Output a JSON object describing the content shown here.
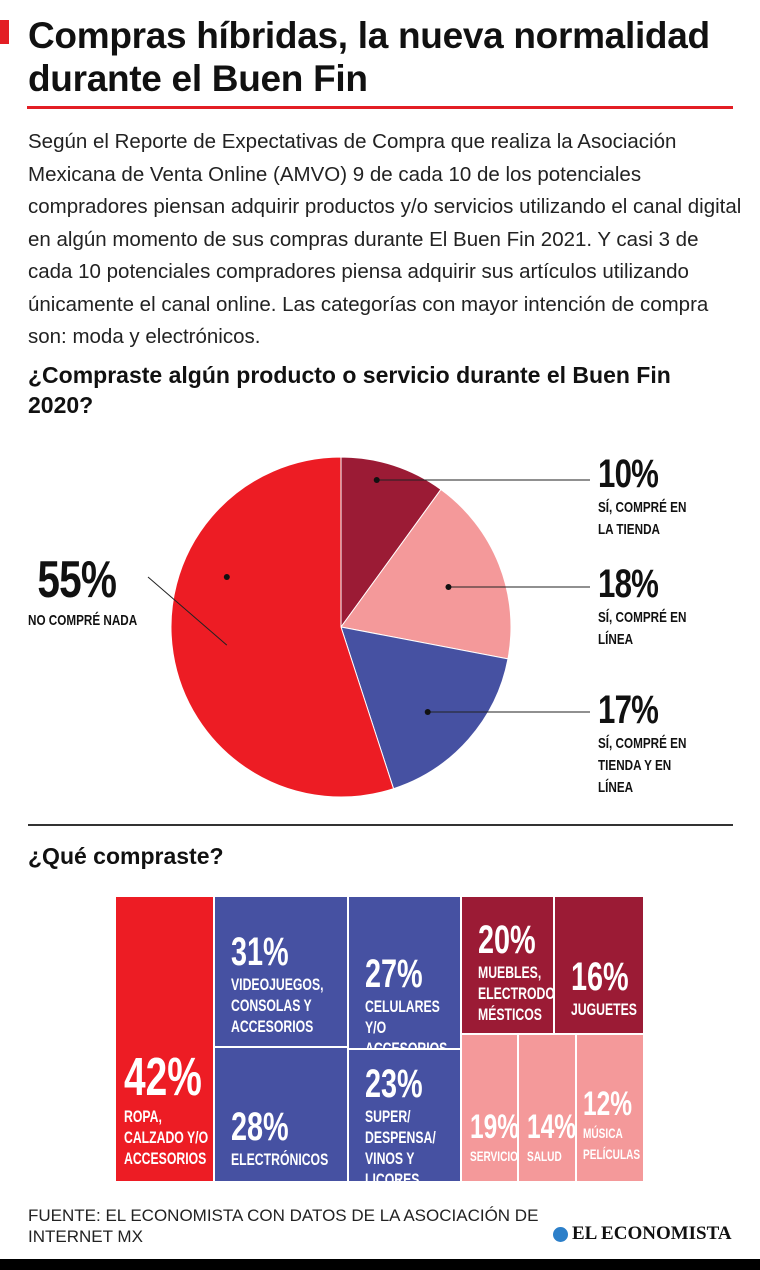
{
  "title": "Compras híbridas, la nueva normalidad durante el Buen Fin",
  "intro": "Según el Reporte de Expectativas de Compra que realiza la Asociación Mexicana de Venta Online (AMVO)  9 de cada 10 de los potenciales compradores piensan adquirir productos y/o servicios utilizando el canal digital en algún momento de sus compras durante El Buen Fin 2021. Y casi 3 de cada 10 potenciales compradores piensa adquirir sus artículos utilizando únicamente el canal online. Las categorías con mayor intención de compra son: moda y electrónicos.",
  "colors": {
    "accent": "#e31e24",
    "red": "#ed1c24",
    "dark_red": "#9b1b35",
    "pink": "#f4999a",
    "blue": "#4651a2"
  },
  "chart_data": [
    {
      "type": "pie",
      "title": "¿Compraste algún producto o servicio durante el Buen Fin 2020?",
      "slices": [
        {
          "label": "SÍ, COMPRÉ EN LA TIENDA",
          "value": 10,
          "display": "10%",
          "color": "#9b1b35"
        },
        {
          "label": "SÍ, COMPRÉ EN LÍNEA",
          "value": 18,
          "display": "18%",
          "color": "#f4999a"
        },
        {
          "label": "SÍ, COMPRÉ EN TIENDA Y EN LÍNEA",
          "value": 17,
          "display": "17%",
          "color": "#4651a2"
        },
        {
          "label": "NO  COMPRÉ NADA",
          "value": 55,
          "display": "55%",
          "color": "#ed1c24"
        }
      ]
    },
    {
      "type": "treemap",
      "title": "¿Qué compraste?",
      "items": [
        {
          "label": "ROPA, CALZADO Y/O ACCESORIOS",
          "value": 42,
          "display": "42%",
          "color": "#ed1c24"
        },
        {
          "label": "VIDEOJUEGOS, CONSOLAS Y ACCESORIOS",
          "value": 31,
          "display": "31%",
          "color": "#4651a2"
        },
        {
          "label": "ELECTRÓNICOS",
          "value": 28,
          "display": "28%",
          "color": "#4651a2"
        },
        {
          "label": "CELULARES Y/O ACCESORIOS",
          "value": 27,
          "display": "27%",
          "color": "#4651a2"
        },
        {
          "label": "SUPER/ DESPENSA/ VINOS Y LICORES",
          "value": 23,
          "display": "23%",
          "color": "#4651a2"
        },
        {
          "label": "MUEBLES, ELECTRODO- MÉSTICOS",
          "value": 20,
          "display": "20%",
          "color": "#9b1b35"
        },
        {
          "label": "JUGUETES",
          "value": 16,
          "display": "16%",
          "color": "#9b1b35"
        },
        {
          "label": "SERVICIOS",
          "value": 19,
          "display": "19%",
          "color": "#f4999a"
        },
        {
          "label": "SALUD",
          "value": 14,
          "display": "14%",
          "color": "#f4999a"
        },
        {
          "label": "MÚSICA PELÍCULAS",
          "value": 12,
          "display": "12%",
          "color": "#f4999a"
        }
      ]
    }
  ],
  "source": "FUENTE: EL ECONOMISTA CON DATOS DE LA ASOCIACIÓN DE INTERNET MX",
  "logo": "EL ECONOMISTA"
}
